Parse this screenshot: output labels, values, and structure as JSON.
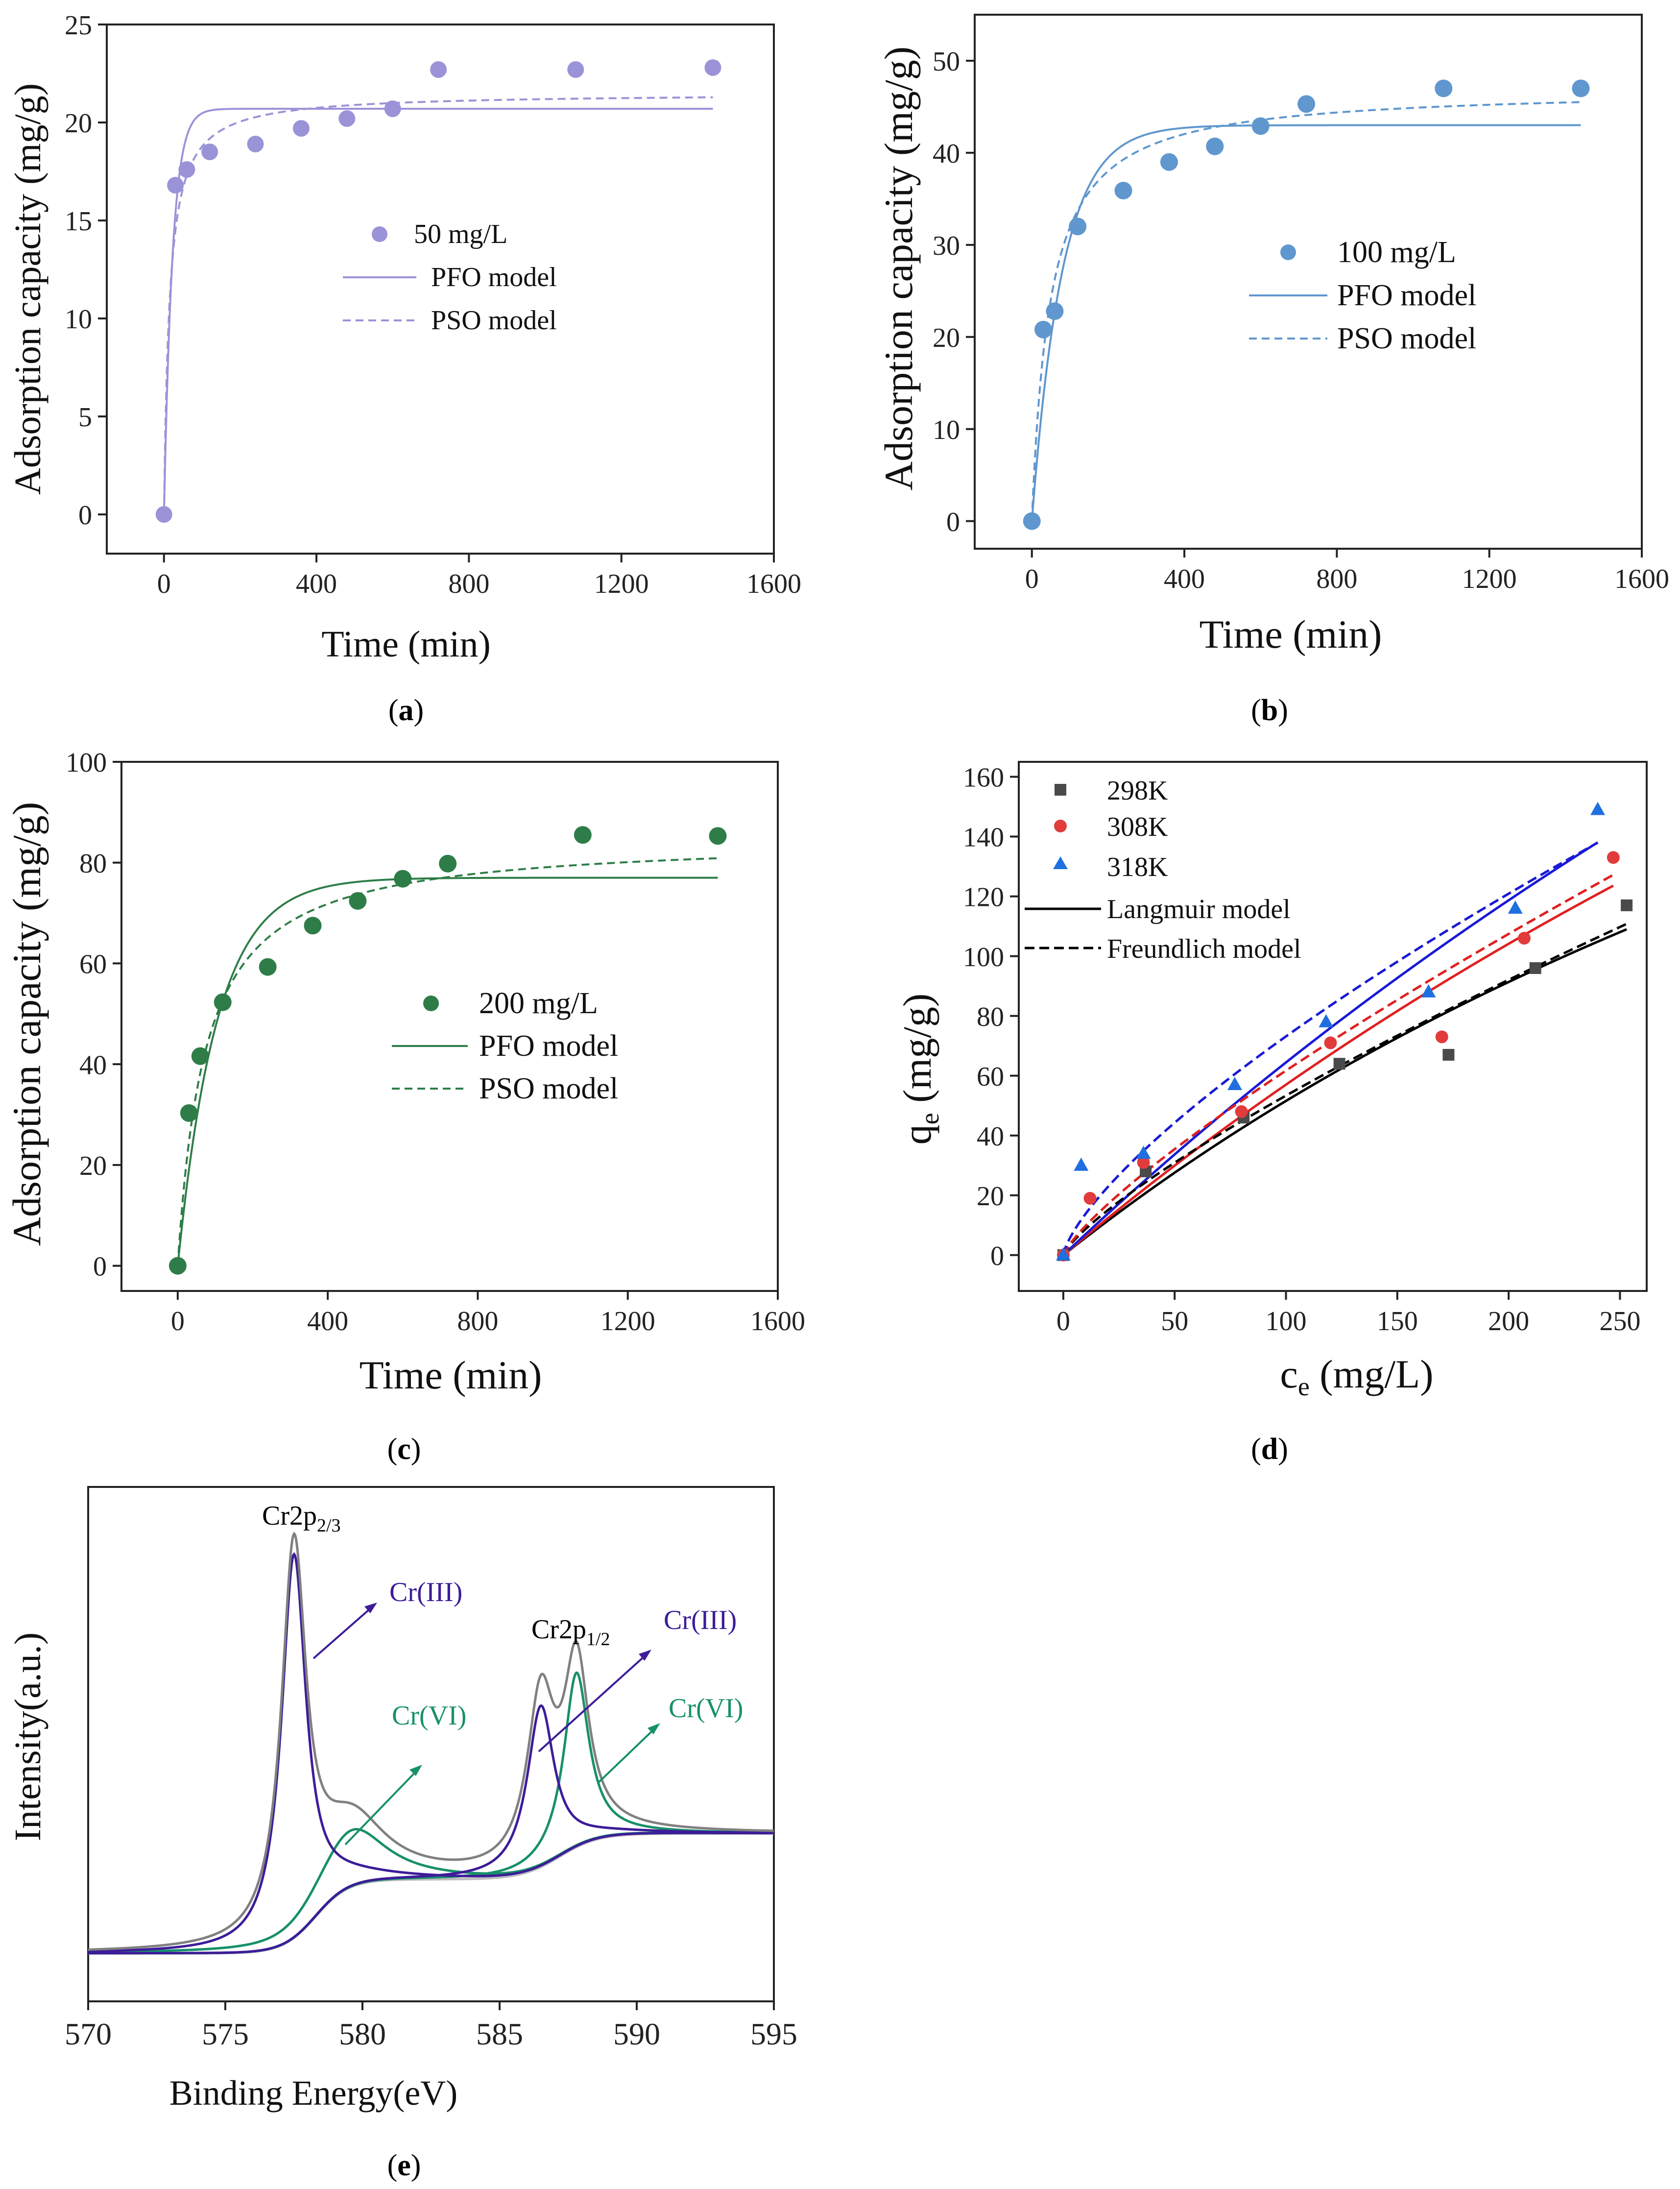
{
  "colors": {
    "a": "#9b93d8",
    "b": "#5f97ce",
    "c": "#2e7d48",
    "d_298": "#4a4a4a",
    "d_308": "#e23b3b",
    "d_318": "#1f6fe0",
    "d_fit_298": "#000000",
    "d_fit_308": "#e02020",
    "d_fit_318": "#1a1ad6",
    "e_envelope": "#808080",
    "e_cr3": "#3d1c99",
    "e_cr6": "#18906a",
    "e_bg": "#bdbdbd"
  },
  "chart_data": [
    {
      "id": "a",
      "type": "scatter",
      "caption": "a",
      "xlabel": "Time (min)",
      "ylabel": "Adsorption capacity (mg/g)",
      "xlim": [
        -150,
        1600
      ],
      "ylim": [
        -2,
        25
      ],
      "xticks": [
        0,
        400,
        800,
        1200,
        1600
      ],
      "yticks": [
        0,
        5,
        10,
        15,
        20,
        25
      ],
      "legend": {
        "points": "50 mg/L",
        "pfo": "PFO model",
        "pso": "PSO model"
      },
      "points": {
        "x": [
          0,
          30,
          60,
          120,
          240,
          360,
          480,
          600,
          720,
          1080,
          1440
        ],
        "y": [
          0,
          16.8,
          17.6,
          18.5,
          18.9,
          19.7,
          20.2,
          20.7,
          22.7,
          22.7,
          22.8
        ]
      },
      "pfo": {
        "qe": 20.7,
        "k": 0.045,
        "xmax": 1440
      },
      "pso": {
        "qe": 21.5,
        "k": 0.0032,
        "xmax": 1440
      }
    },
    {
      "id": "b",
      "type": "scatter",
      "caption": "b",
      "xlabel": "Time (min)",
      "ylabel": "Adsorption capacity (mg/g)",
      "xlim": [
        -150,
        1600
      ],
      "ylim": [
        -3,
        55
      ],
      "xticks": [
        0,
        400,
        800,
        1200,
        1600
      ],
      "yticks": [
        0,
        10,
        20,
        30,
        40,
        50
      ],
      "legend": {
        "points": "100 mg/L",
        "pfo": "PFO model",
        "pso": "PSO model"
      },
      "points": {
        "x": [
          0,
          30,
          60,
          120,
          240,
          360,
          480,
          600,
          720,
          1080,
          1440
        ],
        "y": [
          0,
          20.8,
          22.8,
          32,
          35.9,
          39,
          40.7,
          42.9,
          45.3,
          47,
          47
        ]
      },
      "pfo": {
        "qe": 43,
        "k": 0.0125,
        "xmax": 1440
      },
      "pso": {
        "qe": 47,
        "k": 0.00045,
        "xmax": 1440
      }
    },
    {
      "id": "c",
      "type": "scatter",
      "caption": "c",
      "xlabel": "Time (min)",
      "ylabel": "Adsorption capacity (mg/g)",
      "xlim": [
        -150,
        1600
      ],
      "ylim": [
        -5,
        100
      ],
      "xticks": [
        0,
        400,
        800,
        1200,
        1600
      ],
      "yticks": [
        0,
        20,
        40,
        60,
        80,
        100
      ],
      "legend": {
        "points": "200 mg/L",
        "pfo": "PFO model",
        "pso": "PSO model"
      },
      "points": {
        "x": [
          0,
          30,
          60,
          120,
          240,
          360,
          480,
          600,
          720,
          1080,
          1440
        ],
        "y": [
          0,
          30.3,
          41.6,
          52.3,
          59.3,
          67.5,
          72.4,
          76.8,
          79.8,
          85.5,
          85.3
        ]
      },
      "pfo": {
        "qe": 77,
        "k": 0.0095,
        "xmax": 1440
      },
      "pso": {
        "qe": 85,
        "k": 0.00016,
        "xmax": 1440
      }
    },
    {
      "id": "d",
      "type": "scatter",
      "caption": "d",
      "xlabel_main": "c",
      "xlabel_sub": "e",
      "xlabel_unit": " (mg/L)",
      "ylabel_main": "q",
      "ylabel_sub": "e",
      "ylabel_unit": " (mg/g)",
      "xlim": [
        -20,
        262
      ],
      "ylim": [
        -12,
        165
      ],
      "xticks": [
        0,
        50,
        100,
        150,
        200,
        250
      ],
      "yticks": [
        0,
        20,
        40,
        60,
        80,
        100,
        120,
        140,
        160
      ],
      "legend": {
        "s298": "298K",
        "s308": "308K",
        "s318": "318K",
        "langmuir": "Langmuir model",
        "freundlich": "Freundlich model"
      },
      "series": [
        {
          "name": "298K",
          "marker": "square",
          "x": [
            0,
            37,
            81,
            124,
            173,
            212,
            253
          ],
          "y": [
            0,
            28,
            46,
            64,
            67,
            96,
            117
          ]
        },
        {
          "name": "308K",
          "marker": "circle",
          "x": [
            0,
            12,
            36,
            80,
            120,
            170,
            207,
            247
          ],
          "y": [
            0,
            19,
            31,
            48,
            71,
            73,
            106,
            133
          ]
        },
        {
          "name": "318K",
          "marker": "triangle",
          "x": [
            0,
            8,
            36,
            77,
            118,
            164,
            203,
            240
          ],
          "y": [
            0,
            30,
            34,
            57,
            78,
            88,
            116,
            149
          ]
        }
      ],
      "langmuir": [
        {
          "name": "298K",
          "qm": 400,
          "KL": 0.00148,
          "xmax": 253
        },
        {
          "name": "308K",
          "qm": 600,
          "KL": 0.00105,
          "xmax": 247
        },
        {
          "name": "318K",
          "qm": 750,
          "KL": 0.00094,
          "xmax": 240
        }
      ],
      "freundlich": [
        {
          "name": "298K",
          "KF": 1.42,
          "n": 1.27,
          "xmax": 253
        },
        {
          "name": "308K",
          "KF": 1.55,
          "n": 1.25,
          "xmax": 247
        },
        {
          "name": "318K",
          "KF": 2.6,
          "n": 1.38,
          "xmax": 240
        }
      ]
    },
    {
      "id": "e",
      "type": "line",
      "caption": "e",
      "xlabel": "Binding Energy(eV)",
      "ylabel": "Intensity(a.u.)",
      "xlim": [
        570,
        595
      ],
      "ylim": [
        -0.06,
        1.12
      ],
      "xticks": [
        570,
        575,
        580,
        585,
        590,
        595
      ],
      "annotations": {
        "peak1_main": "Cr2p",
        "peak1_sub": "2/3",
        "peak2_main": "Cr2p",
        "peak2_sub": "1/2",
        "cr3_left": "Cr(III)",
        "cr6_left": "Cr(VI)",
        "cr3_right": "Cr(III)",
        "cr6_right": "Cr(VI)"
      },
      "background": {
        "base": 0.05,
        "step1_height": 0.17,
        "step1_center": 578.3,
        "step1_width": 0.6,
        "step2_height": 0.105,
        "step2_center": 587.2,
        "step2_width": 0.7
      },
      "peaks": [
        {
          "component": "Cr(III)",
          "center": 577.5,
          "height": 0.88,
          "width": 0.55
        },
        {
          "component": "Cr(VI)",
          "center": 579.6,
          "height": 0.13,
          "width": 1.5
        },
        {
          "component": "Cr(III)",
          "center": 586.5,
          "height": 0.37,
          "width": 0.6
        },
        {
          "component": "Cr(VI)",
          "center": 587.8,
          "height": 0.4,
          "width": 0.55
        }
      ]
    }
  ]
}
